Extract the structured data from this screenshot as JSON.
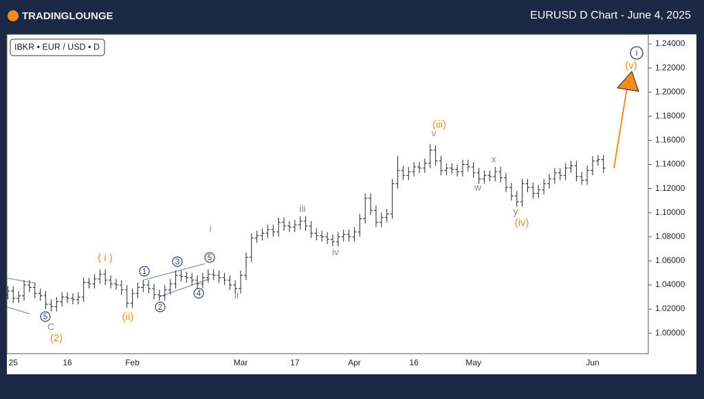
{
  "header": {
    "logo": "TRADINGLOUNGE",
    "title": "EURUSD D Chart - June 4, 2025"
  },
  "chart_data": {
    "type": "ohlc",
    "symbol": "IBKR • EUR / USD • D",
    "color": "#222222",
    "categories": [
      null,
      "25",
      null,
      null,
      null,
      null,
      null,
      null,
      null,
      null,
      null,
      "16",
      null,
      null,
      null,
      null,
      null,
      null,
      null,
      null,
      null,
      null,
      null,
      "Feb",
      null,
      null,
      null,
      null,
      null,
      null,
      null,
      null,
      null,
      null,
      null,
      null,
      null,
      null,
      null,
      null,
      null,
      null,
      null,
      "Mar",
      null,
      null,
      null,
      null,
      null,
      null,
      null,
      null,
      null,
      "17",
      null,
      null,
      null,
      null,
      null,
      null,
      null,
      null,
      null,
      null,
      "Apr",
      null,
      null,
      null,
      null,
      null,
      null,
      null,
      null,
      null,
      null,
      "16",
      null,
      null,
      null,
      null,
      null,
      null,
      null,
      null,
      null,
      null,
      "May",
      null,
      null,
      null,
      null,
      null,
      null,
      null,
      null,
      null,
      null,
      null,
      null,
      null,
      null,
      null,
      null,
      null,
      null,
      null,
      null,
      null,
      "Jun",
      null,
      null
    ],
    "open": [
      1.032,
      1.035,
      1.029,
      1.031,
      1.04,
      1.038,
      1.033,
      1.031,
      1.024,
      1.022,
      1.026,
      1.03,
      1.029,
      1.028,
      1.03,
      1.042,
      1.041,
      1.045,
      1.049,
      1.044,
      1.041,
      1.04,
      1.036,
      1.025,
      1.033,
      1.038,
      1.04,
      1.037,
      1.032,
      1.031,
      1.036,
      1.041,
      1.048,
      1.047,
      1.046,
      1.044,
      1.041,
      1.046,
      1.049,
      1.048,
      1.046,
      1.044,
      1.04,
      1.037,
      1.048,
      1.063,
      1.079,
      1.081,
      1.083,
      1.086,
      1.084,
      1.092,
      1.089,
      1.088,
      1.09,
      1.093,
      1.089,
      1.083,
      1.081,
      1.08,
      1.078,
      1.076,
      1.08,
      1.082,
      1.08,
      1.084,
      1.095,
      1.112,
      1.102,
      1.092,
      1.096,
      1.099,
      1.124,
      1.135,
      1.131,
      1.134,
      1.138,
      1.137,
      1.141,
      1.152,
      1.143,
      1.135,
      1.137,
      1.136,
      1.134,
      1.14,
      1.138,
      1.133,
      1.128,
      1.131,
      1.13,
      1.134,
      1.129,
      1.121,
      1.114,
      1.109,
      1.124,
      1.121,
      1.116,
      1.119,
      1.124,
      1.128,
      1.133,
      1.131,
      1.137,
      1.139,
      1.13,
      1.127,
      1.135,
      1.143,
      1.144
    ],
    "high": [
      1.039,
      1.039,
      1.035,
      1.044,
      1.044,
      1.042,
      1.037,
      1.035,
      1.028,
      1.03,
      1.034,
      1.034,
      1.033,
      1.034,
      1.046,
      1.046,
      1.049,
      1.053,
      1.053,
      1.048,
      1.045,
      1.044,
      1.04,
      1.037,
      1.042,
      1.044,
      1.044,
      1.041,
      1.036,
      1.04,
      1.045,
      1.052,
      1.052,
      1.051,
      1.05,
      1.048,
      1.05,
      1.053,
      1.053,
      1.052,
      1.05,
      1.048,
      1.044,
      1.052,
      1.067,
      1.083,
      1.085,
      1.087,
      1.09,
      1.09,
      1.096,
      1.096,
      1.093,
      1.094,
      1.097,
      1.097,
      1.093,
      1.087,
      1.085,
      1.084,
      1.082,
      1.084,
      1.086,
      1.086,
      1.088,
      1.099,
      1.116,
      1.116,
      1.106,
      1.1,
      1.103,
      1.128,
      1.147,
      1.139,
      1.138,
      1.142,
      1.142,
      1.145,
      1.157,
      1.156,
      1.147,
      1.141,
      1.141,
      1.14,
      1.144,
      1.144,
      1.142,
      1.137,
      1.135,
      1.135,
      1.138,
      1.138,
      1.133,
      1.125,
      1.118,
      1.128,
      1.128,
      1.125,
      1.123,
      1.128,
      1.132,
      1.137,
      1.137,
      1.141,
      1.143,
      1.143,
      1.134,
      1.139,
      1.147,
      1.148,
      1.148
    ],
    "low": [
      1.028,
      1.025,
      1.025,
      1.027,
      1.034,
      1.029,
      1.027,
      1.02,
      1.018,
      1.018,
      1.022,
      1.025,
      1.024,
      1.024,
      1.026,
      1.037,
      1.037,
      1.041,
      1.04,
      1.037,
      1.036,
      1.032,
      1.021,
      1.021,
      1.029,
      1.034,
      1.033,
      1.028,
      1.027,
      1.027,
      1.032,
      1.037,
      1.043,
      1.042,
      1.04,
      1.037,
      1.037,
      1.042,
      1.044,
      1.042,
      1.04,
      1.036,
      1.033,
      1.033,
      1.044,
      1.059,
      1.075,
      1.077,
      1.079,
      1.08,
      1.08,
      1.085,
      1.084,
      1.084,
      1.086,
      1.085,
      1.079,
      1.077,
      1.076,
      1.074,
      1.072,
      1.072,
      1.076,
      1.076,
      1.076,
      1.08,
      1.091,
      1.098,
      1.088,
      1.088,
      1.092,
      1.095,
      1.12,
      1.127,
      1.127,
      1.13,
      1.133,
      1.133,
      1.137,
      1.139,
      1.131,
      1.131,
      1.132,
      1.13,
      1.13,
      1.134,
      1.129,
      1.124,
      1.124,
      1.126,
      1.126,
      1.125,
      1.117,
      1.11,
      1.105,
      1.105,
      1.117,
      1.112,
      1.112,
      1.115,
      1.12,
      1.124,
      1.127,
      1.127,
      1.133,
      1.126,
      1.123,
      1.123,
      1.131,
      1.139,
      1.133
    ],
    "close": [
      1.035,
      1.029,
      1.031,
      1.04,
      1.038,
      1.033,
      1.031,
      1.024,
      1.022,
      1.026,
      1.03,
      1.029,
      1.028,
      1.03,
      1.042,
      1.041,
      1.045,
      1.049,
      1.044,
      1.041,
      1.04,
      1.036,
      1.025,
      1.033,
      1.038,
      1.04,
      1.037,
      1.032,
      1.031,
      1.036,
      1.041,
      1.048,
      1.047,
      1.046,
      1.044,
      1.041,
      1.046,
      1.049,
      1.048,
      1.046,
      1.044,
      1.04,
      1.037,
      1.048,
      1.063,
      1.079,
      1.081,
      1.083,
      1.086,
      1.084,
      1.092,
      1.089,
      1.088,
      1.09,
      1.093,
      1.089,
      1.083,
      1.081,
      1.08,
      1.078,
      1.076,
      1.08,
      1.082,
      1.08,
      1.084,
      1.095,
      1.112,
      1.102,
      1.092,
      1.096,
      1.099,
      1.124,
      1.135,
      1.131,
      1.134,
      1.138,
      1.137,
      1.141,
      1.152,
      1.143,
      1.135,
      1.137,
      1.136,
      1.134,
      1.14,
      1.138,
      1.133,
      1.128,
      1.131,
      1.13,
      1.134,
      1.129,
      1.121,
      1.114,
      1.109,
      1.124,
      1.121,
      1.116,
      1.119,
      1.124,
      1.128,
      1.133,
      1.131,
      1.137,
      1.139,
      1.13,
      1.127,
      1.135,
      1.143,
      1.144,
      1.137
    ],
    "ylim": [
      0.983,
      1.248
    ],
    "yticks": [
      {
        "value": 1.0,
        "label": "1.00000"
      },
      {
        "value": 1.02,
        "label": "1.02000"
      },
      {
        "value": 1.04,
        "label": "1.04000"
      },
      {
        "value": 1.06,
        "label": "1.06000"
      },
      {
        "value": 1.08,
        "label": "1.08000"
      },
      {
        "value": 1.1,
        "label": "1.10000"
      },
      {
        "value": 1.12,
        "label": "1.12000"
      },
      {
        "value": 1.14,
        "label": "1.14000"
      },
      {
        "value": 1.16,
        "label": "1.16000"
      },
      {
        "value": 1.18,
        "label": "1.18000"
      },
      {
        "value": 1.2,
        "label": "1.20000"
      },
      {
        "value": 1.22,
        "label": "1.22000"
      },
      {
        "value": 1.24,
        "label": "1.24000"
      }
    ],
    "annotations": [
      "5",
      "C",
      "(2)",
      "( i )",
      "(ii)",
      "1",
      "2",
      "3",
      "4",
      "5",
      "i",
      "ii",
      "iii",
      "iv",
      "v",
      "(iii)",
      "w",
      "x",
      "y",
      "(iv)",
      "(v)",
      "i"
    ]
  }
}
